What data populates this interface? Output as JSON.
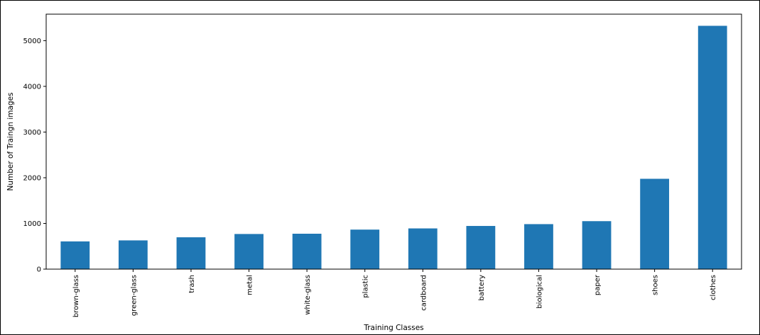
{
  "chart_data": {
    "type": "bar",
    "title": "",
    "xlabel": "Training Classes",
    "ylabel": "Number of Traingn images",
    "categories": [
      "brown-glass",
      "green-glass",
      "trash",
      "metal",
      "white-glass",
      "plastic",
      "cardboard",
      "battery",
      "biological",
      "paper",
      "shoes",
      "clothes"
    ],
    "values": [
      607,
      629,
      697,
      769,
      775,
      865,
      891,
      945,
      985,
      1050,
      1977,
      5325
    ],
    "ylim": [
      0,
      5580
    ],
    "yticks": [
      0,
      1000,
      2000,
      3000,
      4000,
      5000
    ],
    "yticklabels": [
      "0",
      "1000",
      "2000",
      "3000",
      "4000",
      "5000"
    ],
    "grid": false,
    "bar_color": "#1f77b4"
  }
}
